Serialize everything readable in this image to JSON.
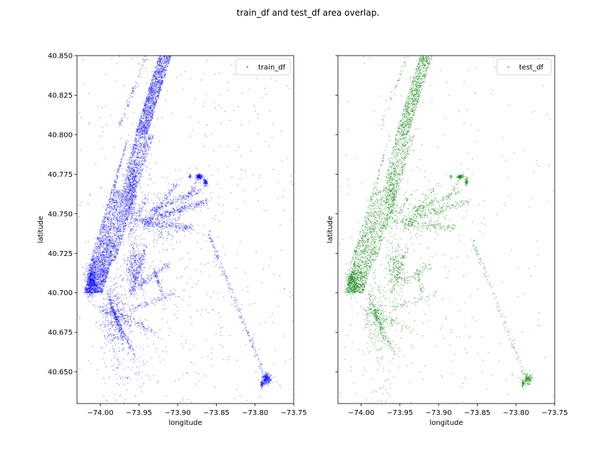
{
  "figure": {
    "title": "train_df and test_df area overlap."
  },
  "chart_data": [
    {
      "type": "scatter",
      "series": [
        {
          "name": "train_df",
          "color": "#0000ff"
        }
      ],
      "xlabel": "longitude",
      "ylabel": "latitude",
      "xlim": [
        -74.03,
        -73.75
      ],
      "ylim": [
        40.63,
        40.85
      ],
      "xticks": [
        -74.0,
        -73.95,
        -73.9,
        -73.85,
        -73.8,
        -73.75
      ],
      "xtick_labels": [
        "−74.00",
        "−73.95",
        "−73.90",
        "−73.85",
        "−73.80",
        "−73.75"
      ],
      "yticks": [
        40.65,
        40.675,
        40.7,
        40.725,
        40.75,
        40.775,
        40.8,
        40.825,
        40.85
      ],
      "ytick_labels": [
        "40.650",
        "40.675",
        "40.700",
        "40.725",
        "40.750",
        "40.775",
        "40.800",
        "40.825",
        "40.850"
      ],
      "show_ytick_labels": true,
      "legend": {
        "label": "train_df",
        "placement": "upper right"
      },
      "grid": false
    },
    {
      "type": "scatter",
      "series": [
        {
          "name": "test_df",
          "color": "#008000"
        }
      ],
      "xlabel": "longitude",
      "ylabel": "latitude",
      "xlim": [
        -74.03,
        -73.75
      ],
      "ylim": [
        40.63,
        40.85
      ],
      "xticks": [
        -74.0,
        -73.95,
        -73.9,
        -73.85,
        -73.8,
        -73.75
      ],
      "xtick_labels": [
        "−74.00",
        "−73.95",
        "−73.90",
        "−73.85",
        "−73.80",
        "−73.75"
      ],
      "yticks": [
        40.65,
        40.675,
        40.7,
        40.725,
        40.75,
        40.775,
        40.8,
        40.825,
        40.85
      ],
      "ytick_labels": [
        "40.650",
        "40.675",
        "40.700",
        "40.725",
        "40.750",
        "40.775",
        "40.800",
        "40.825",
        "40.850"
      ],
      "show_ytick_labels": false,
      "legend": {
        "label": "test_df",
        "placement": "upper right"
      },
      "grid": false
    }
  ]
}
